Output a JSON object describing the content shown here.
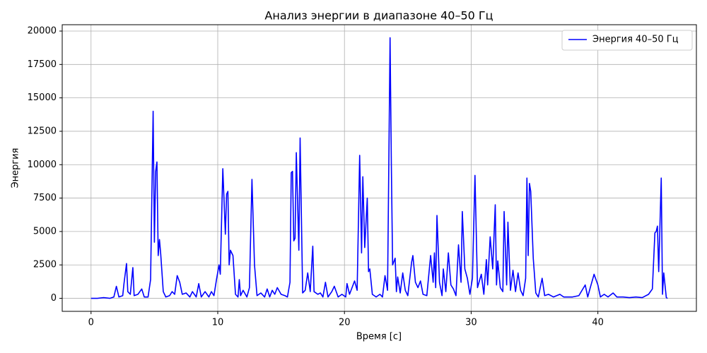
{
  "chart_data": {
    "type": "line",
    "title": "Анализ энергии в диапазоне 40–50 Гц",
    "xlabel": "Время [с]",
    "ylabel": "Энергия",
    "x": [
      0,
      0.5,
      1,
      1.5,
      1.8,
      2.0,
      2.2,
      2.5,
      2.6,
      2.8,
      2.9,
      3.1,
      3.3,
      3.4,
      3.7,
      4.0,
      4.2,
      4.5,
      4.7,
      4.9,
      5.0,
      5.1,
      5.2,
      5.3,
      5.4,
      5.5,
      5.7,
      5.9,
      6.2,
      6.4,
      6.6,
      6.8,
      7.0,
      7.2,
      7.5,
      7.8,
      8.0,
      8.3,
      8.5,
      8.7,
      9.0,
      9.3,
      9.5,
      9.7,
      9.9,
      10.1,
      10.2,
      10.4,
      10.6,
      10.7,
      10.8,
      10.9,
      11.0,
      11.2,
      11.4,
      11.6,
      11.7,
      11.8,
      12.0,
      12.3,
      12.5,
      12.7,
      12.9,
      13.1,
      13.4,
      13.7,
      13.9,
      14.1,
      14.3,
      14.5,
      14.7,
      15.0,
      15.3,
      15.5,
      15.7,
      15.8,
      15.9,
      16.0,
      16.1,
      16.2,
      16.4,
      16.5,
      16.7,
      16.9,
      17.1,
      17.3,
      17.5,
      17.6,
      17.9,
      18.1,
      18.3,
      18.5,
      18.7,
      19.0,
      19.2,
      19.5,
      19.8,
      20.1,
      20.2,
      20.4,
      20.6,
      20.8,
      21.0,
      21.2,
      21.35,
      21.45,
      21.6,
      21.8,
      21.9,
      22.0,
      22.2,
      22.5,
      22.8,
      23.0,
      23.2,
      23.4,
      23.6,
      23.7,
      23.8,
      24.0,
      24.1,
      24.2,
      24.4,
      24.6,
      24.8,
      25.0,
      25.3,
      25.4,
      25.6,
      25.8,
      26.0,
      26.2,
      26.5,
      26.8,
      27.0,
      27.1,
      27.2,
      27.3,
      27.5,
      27.7,
      27.8,
      28.0,
      28.2,
      28.4,
      28.6,
      28.8,
      29.0,
      29.2,
      29.3,
      29.5,
      29.7,
      29.9,
      30.1,
      30.3,
      30.5,
      30.8,
      31.0,
      31.2,
      31.3,
      31.5,
      31.7,
      31.9,
      32.0,
      32.1,
      32.3,
      32.5,
      32.6,
      32.8,
      32.9,
      33.1,
      33.3,
      33.5,
      33.7,
      33.9,
      34.1,
      34.3,
      34.4,
      34.5,
      34.6,
      34.7,
      34.9,
      35.1,
      35.3,
      35.6,
      35.8,
      36.1,
      36.5,
      37.0,
      37.3,
      38.0,
      38.5,
      39.0,
      39.2,
      39.4,
      39.7,
      40.0,
      40.2,
      40.5,
      40.8,
      41.2,
      41.5,
      42.0,
      42.5,
      43.0,
      43.5,
      44.0,
      44.3,
      44.5,
      44.6,
      44.7,
      44.8,
      45.0,
      45.1,
      45.2,
      45.4,
      45.5
    ],
    "series": [
      {
        "name": "Энергия 40–50 Гц",
        "color": "#0000ff",
        "values": [
          0,
          0,
          50,
          0,
          100,
          900,
          100,
          200,
          1100,
          2600,
          500,
          300,
          2300,
          200,
          300,
          700,
          100,
          100,
          1400,
          14000,
          4200,
          9500,
          10200,
          3200,
          4400,
          3300,
          500,
          100,
          200,
          500,
          300,
          1700,
          1200,
          300,
          400,
          100,
          500,
          100,
          1100,
          100,
          500,
          100,
          500,
          200,
          1400,
          2500,
          1800,
          9700,
          4800,
          7800,
          8000,
          2500,
          3600,
          3200,
          300,
          100,
          1400,
          200,
          600,
          100,
          800,
          8900,
          2500,
          200,
          400,
          100,
          700,
          100,
          600,
          300,
          800,
          300,
          200,
          100,
          1200,
          9400,
          9500,
          4300,
          4500,
          10900,
          3600,
          12000,
          400,
          600,
          1900,
          500,
          3900,
          500,
          300,
          400,
          100,
          1200,
          100,
          500,
          900,
          100,
          300,
          100,
          1100,
          300,
          800,
          1300,
          600,
          10700,
          3400,
          9100,
          3800,
          7500,
          2000,
          2200,
          300,
          100,
          300,
          100,
          1700,
          600,
          19500,
          10000,
          2500,
          3000,
          500,
          1600,
          400,
          1900,
          600,
          200,
          2700,
          3200,
          1200,
          800,
          1300,
          300,
          200,
          3200,
          1200,
          3400,
          800,
          6200,
          1200,
          200,
          2200,
          500,
          3400,
          1000,
          700,
          200,
          4000,
          1200,
          6500,
          2200,
          1500,
          300,
          1500,
          9200,
          800,
          1800,
          300,
          2900,
          1000,
          4600,
          2200,
          7000,
          1000,
          2800,
          800,
          500,
          6500,
          1000,
          5700,
          600,
          2100,
          500,
          1900,
          600,
          200,
          1500,
          9000,
          3200,
          8600,
          8000,
          3000,
          400,
          100,
          1500,
          200,
          300,
          100,
          300,
          100,
          100,
          200,
          1000,
          100,
          800,
          1800,
          1000,
          100,
          300,
          100,
          400,
          100,
          100,
          50,
          100,
          50,
          300,
          700,
          4900,
          5000,
          5400,
          2000,
          9000,
          300,
          1900,
          50,
          0
        ]
      }
    ],
    "xlim": [
      -2.275,
      47.775
    ],
    "xticks": [
      0,
      10,
      20,
      30,
      40
    ],
    "ylim": [
      -975,
      20475
    ],
    "yticks": [
      0,
      2500,
      5000,
      7500,
      10000,
      12500,
      15000,
      17500,
      20000
    ],
    "grid": true,
    "legend": "upper right"
  }
}
